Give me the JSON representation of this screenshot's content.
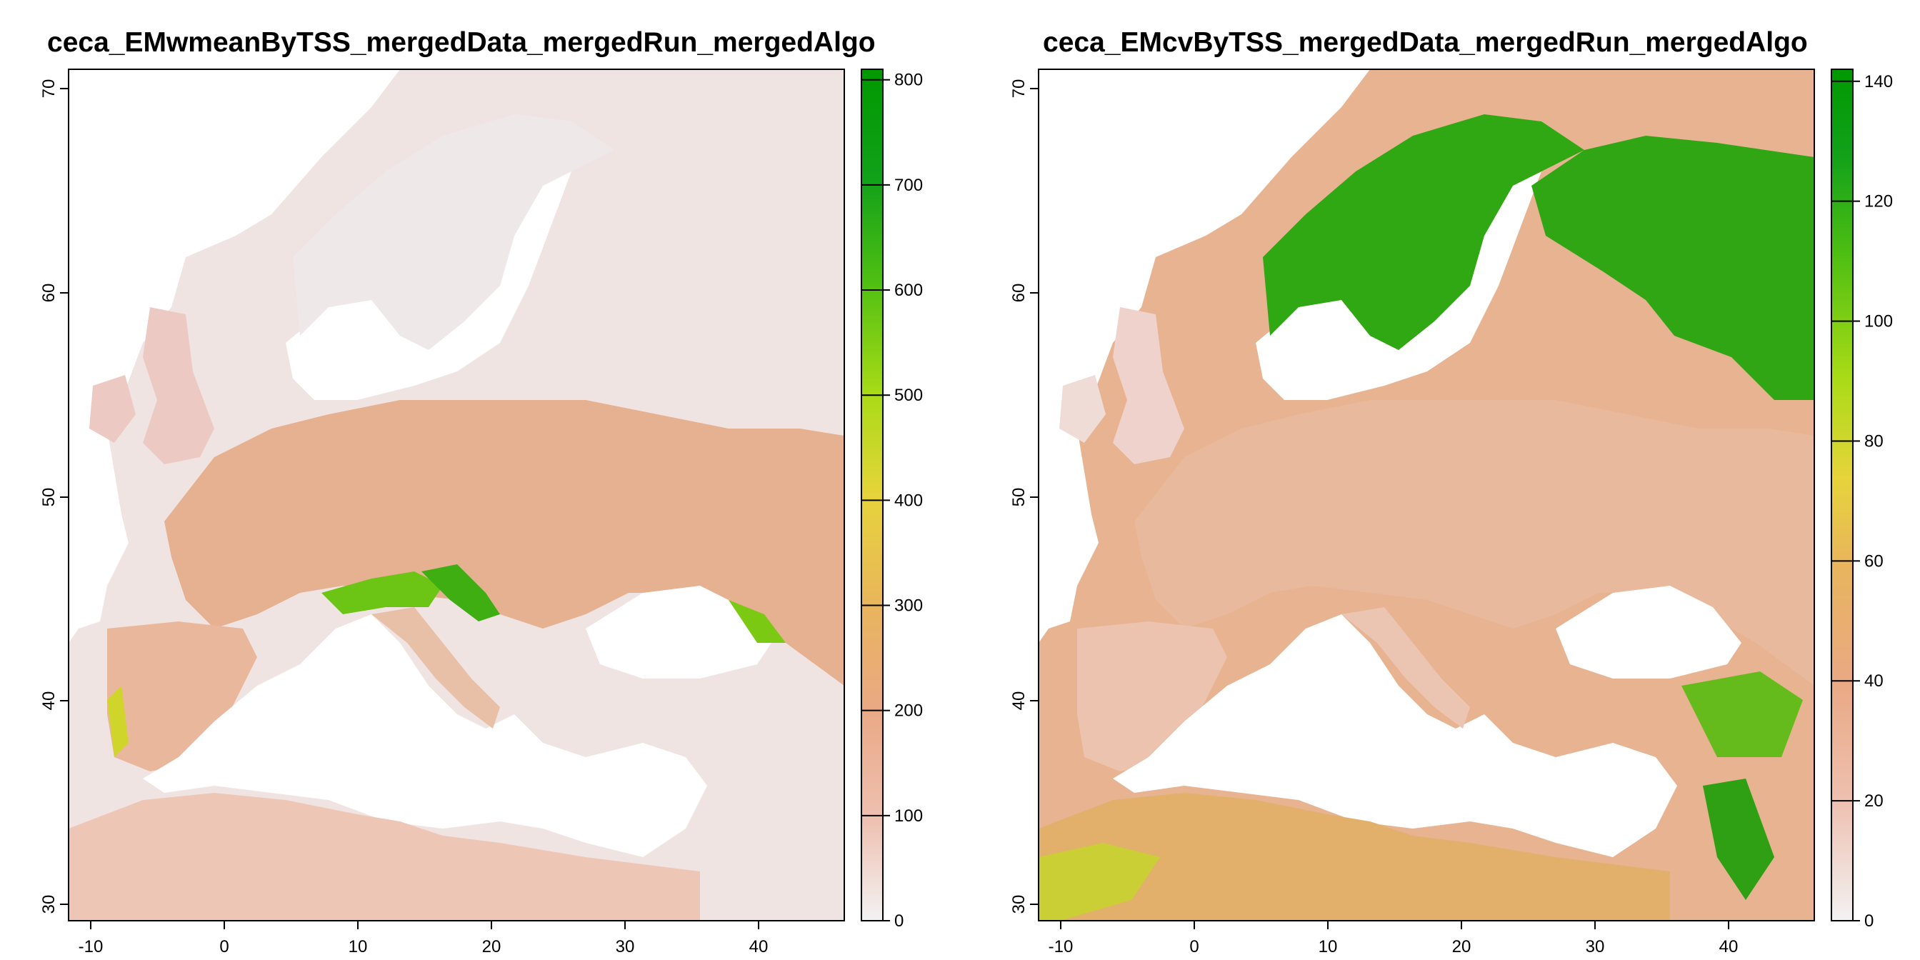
{
  "maps": [
    {
      "id": "left",
      "title": "ceca_EMwmeanByTSS_mergedData_mergedRun_mergedAlgo",
      "x_ticks": [
        "-10",
        "0",
        "10",
        "20",
        "30",
        "40"
      ],
      "y_ticks": [
        "30",
        "40",
        "50",
        "60",
        "70"
      ],
      "legend_ticks": [
        "0",
        "100",
        "200",
        "300",
        "400",
        "500",
        "600",
        "700",
        "800"
      ],
      "legend_range": [
        0,
        810
      ],
      "lon_range": [
        -11,
        47
      ],
      "lat_range": [
        29,
        71
      ]
    },
    {
      "id": "right",
      "title": "ceca_EMcvByTSS_mergedData_mergedRun_mergedAlgo",
      "x_ticks": [
        "-10",
        "0",
        "10",
        "20",
        "30",
        "40"
      ],
      "y_ticks": [
        "30",
        "40",
        "50",
        "60",
        "70"
      ],
      "legend_ticks": [
        "0",
        "20",
        "40",
        "60",
        "80",
        "100",
        "120",
        "140"
      ],
      "legend_range": [
        0,
        142
      ],
      "lon_range": [
        -11,
        47
      ],
      "lat_range": [
        29,
        71
      ]
    }
  ],
  "colors": {
    "ramp": [
      "#f2f2f2",
      "#eec0b0",
      "#e9a984",
      "#e8b55c",
      "#e6d43a",
      "#a8db16",
      "#4fbf12",
      "#12a11a",
      "#009900"
    ],
    "water": "#ffffff"
  }
}
